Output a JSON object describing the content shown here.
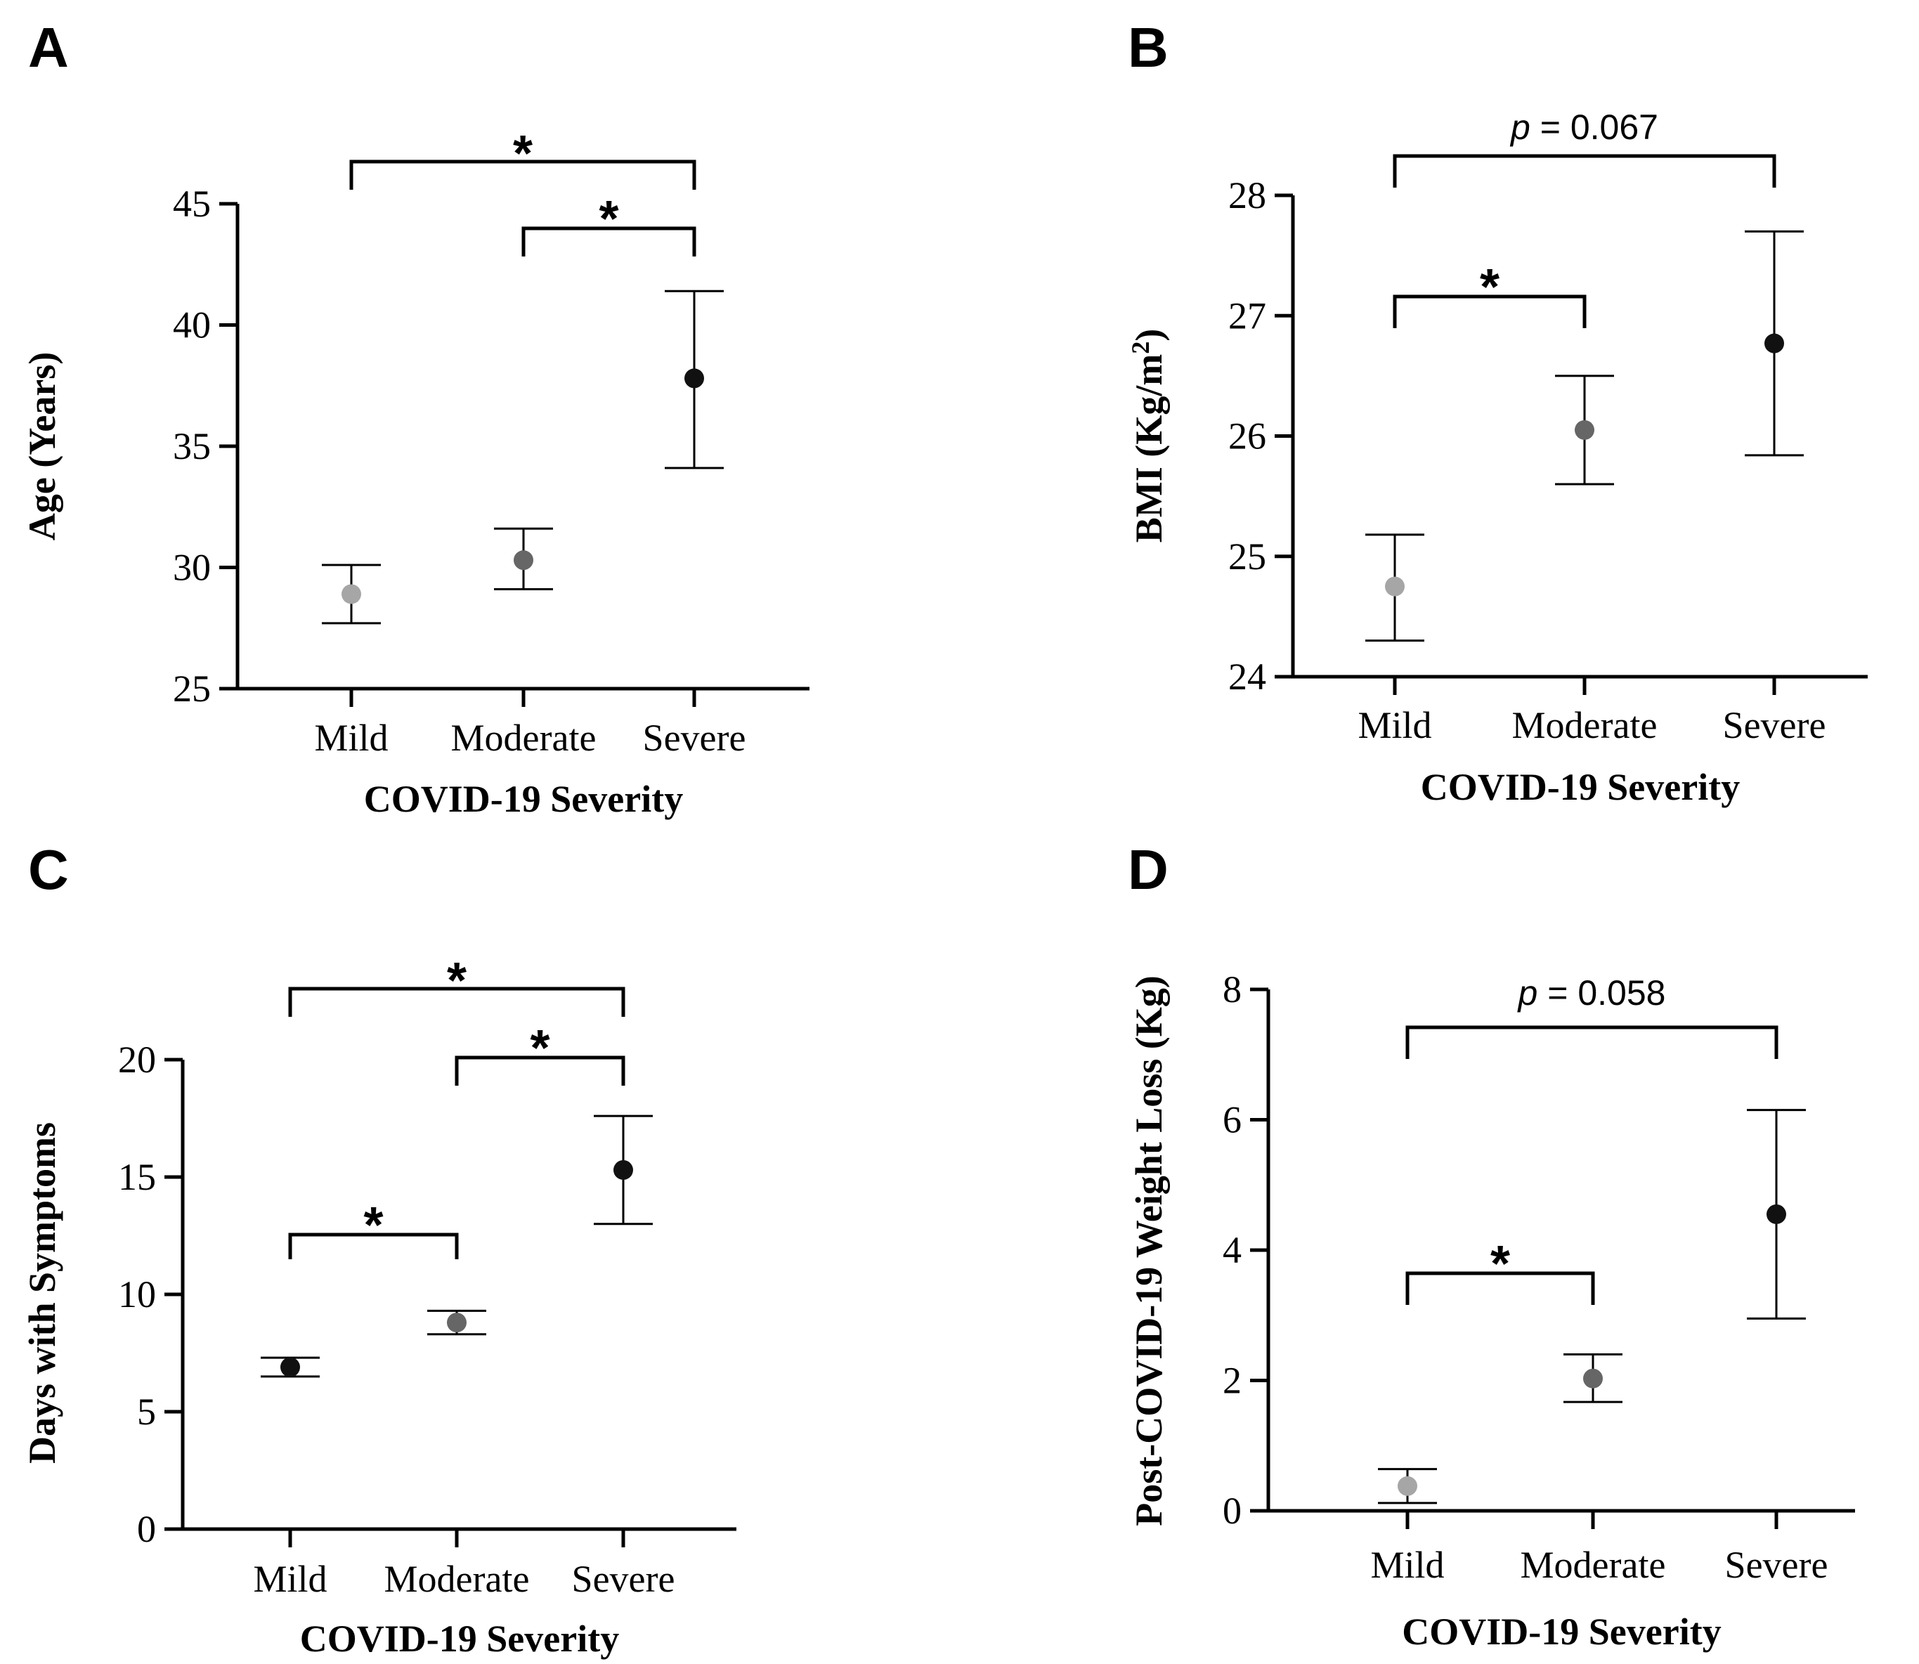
{
  "chart_data": [
    {
      "panel": "A",
      "type": "scatter",
      "categories": [
        "Mild",
        "Moderate",
        "Severe"
      ],
      "values": [
        28.9,
        30.3,
        37.8
      ],
      "error_low": [
        27.7,
        29.1,
        34.1
      ],
      "error_high": [
        30.1,
        31.6,
        41.4
      ],
      "point_colors": [
        "#a6a6a6",
        "#666666",
        "#111111"
      ],
      "xlabel": "COVID-19 Severity",
      "ylabel": "Age (Years)",
      "ylim": [
        25,
        45
      ],
      "yticks": [
        "25",
        "30",
        "35",
        "40",
        "45"
      ],
      "brackets": [
        {
          "from": 0,
          "to": 2,
          "label": "*"
        },
        {
          "from": 1,
          "to": 2,
          "label": "*"
        }
      ]
    },
    {
      "panel": "B",
      "type": "scatter",
      "categories": [
        "Mild",
        "Moderate",
        "Severe"
      ],
      "values": [
        24.75,
        26.05,
        26.77
      ],
      "error_low": [
        24.3,
        25.6,
        25.84
      ],
      "error_high": [
        25.18,
        26.5,
        27.7
      ],
      "point_colors": [
        "#a6a6a6",
        "#666666",
        "#111111"
      ],
      "xlabel": "COVID-19 Severity",
      "ylabel": "BMI (Kg/m",
      "ylabel_sup": "2",
      "ylabel_end": ")",
      "ylim": [
        24,
        28
      ],
      "yticks": [
        "24",
        "25",
        "26",
        "27",
        "28"
      ],
      "brackets": [
        {
          "from": 0,
          "to": 2,
          "p_italic": "p",
          "p_value": " = 0.067"
        },
        {
          "from": 0,
          "to": 1,
          "label": "*"
        }
      ]
    },
    {
      "panel": "C",
      "type": "scatter",
      "categories": [
        "Mild",
        "Moderate",
        "Severe"
      ],
      "values": [
        6.9,
        8.8,
        15.3
      ],
      "error_low": [
        6.5,
        8.3,
        13.0
      ],
      "error_high": [
        7.3,
        9.3,
        17.6
      ],
      "point_colors": [
        "#111111",
        "#666666",
        "#111111"
      ],
      "xlabel": "COVID-19 Severity",
      "ylabel": "Days with Symptoms",
      "ylim": [
        0,
        20
      ],
      "yticks": [
        "0",
        "5",
        "10",
        "15",
        "20"
      ],
      "brackets": [
        {
          "from": 0,
          "to": 2,
          "label": "*"
        },
        {
          "from": 1,
          "to": 2,
          "label": "*"
        },
        {
          "from": 0,
          "to": 1,
          "label": "*"
        }
      ]
    },
    {
      "panel": "D",
      "type": "scatter",
      "categories": [
        "Mild",
        "Moderate",
        "Severe"
      ],
      "values": [
        0.38,
        2.03,
        4.55
      ],
      "error_low": [
        0.12,
        1.67,
        2.95
      ],
      "error_high": [
        0.64,
        2.4,
        6.15
      ],
      "point_colors": [
        "#a6a6a6",
        "#666666",
        "#111111"
      ],
      "xlabel": "COVID-19 Severity",
      "ylabel": "Post-COVID-19 Weight Loss (Kg)",
      "ylim": [
        0,
        8
      ],
      "yticks": [
        "0",
        "2",
        "4",
        "6",
        "8"
      ],
      "brackets": [
        {
          "from": 0,
          "to": 2,
          "p_italic": "p",
          "p_value": " = 0.058"
        },
        {
          "from": 0,
          "to": 1,
          "label": "*"
        }
      ]
    }
  ]
}
